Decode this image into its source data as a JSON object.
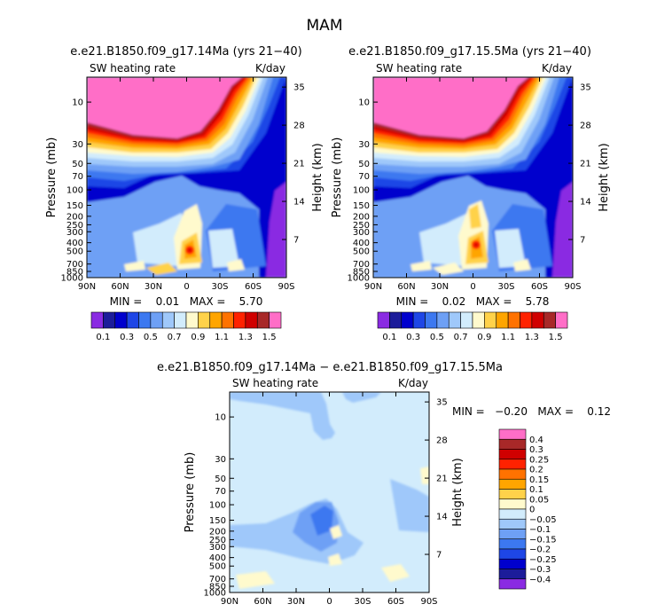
{
  "figure_title": "MAM",
  "chart_data": [
    {
      "type": "heatmap",
      "title": "e.e21.B1850.f09_g17.14Ma (yrs 21−40)",
      "subtitle_left": "SW heating rate",
      "subtitle_right": "K/day",
      "xlabel": "",
      "ylabel": "Pressure (mb)",
      "ylabel_right": "Height (km)",
      "x_ticks": [
        "90N",
        "60N",
        "30N",
        "0",
        "30S",
        "60S",
        "90S"
      ],
      "y_ticks": [
        "10",
        "30",
        "50",
        "70",
        "100",
        "150",
        "200",
        "250",
        "300",
        "400",
        "500",
        "700",
        "850",
        "1000"
      ],
      "y_ticks_right": [
        "35",
        "28",
        "21",
        "14",
        "7"
      ],
      "stats": "MIN =    0.01   MAX =    5.70",
      "colorbar_labels": [
        "0.1",
        "0.3",
        "0.5",
        "0.7",
        "0.9",
        "1.1",
        "1.3",
        "1.5"
      ]
    },
    {
      "type": "heatmap",
      "title": "e.e21.B1850.f09_g17.15.5Ma (yrs 21−40)",
      "subtitle_left": "SW heating rate",
      "subtitle_right": "K/day",
      "xlabel": "",
      "ylabel": "Pressure (mb)",
      "ylabel_right": "Height (km)",
      "x_ticks": [
        "90N",
        "60N",
        "30N",
        "0",
        "30S",
        "60S",
        "90S"
      ],
      "y_ticks": [
        "10",
        "30",
        "50",
        "70",
        "100",
        "150",
        "200",
        "250",
        "300",
        "400",
        "500",
        "700",
        "850",
        "1000"
      ],
      "y_ticks_right": [
        "35",
        "28",
        "21",
        "14",
        "7"
      ],
      "stats": "MIN =    0.02   MAX =    5.78",
      "colorbar_labels": [
        "0.1",
        "0.3",
        "0.5",
        "0.7",
        "0.9",
        "1.1",
        "1.3",
        "1.5"
      ]
    },
    {
      "type": "heatmap",
      "title": "e.e21.B1850.f09_g17.14Ma − e.e21.B1850.f09_g17.15.5Ma",
      "subtitle_left": "SW heating rate",
      "subtitle_right": "K/day",
      "xlabel": "",
      "ylabel": "Pressure (mb)",
      "ylabel_right": "Height (km)",
      "x_ticks": [
        "90N",
        "60N",
        "30N",
        "0",
        "30S",
        "60S",
        "90S"
      ],
      "y_ticks": [
        "10",
        "30",
        "50",
        "70",
        "100",
        "150",
        "200",
        "250",
        "300",
        "400",
        "500",
        "700",
        "850",
        "1000"
      ],
      "y_ticks_right": [
        "35",
        "28",
        "21",
        "14",
        "7"
      ],
      "stats": "MIN =   −0.20   MAX =    0.12",
      "colorbar_labels": [
        "0.4",
        "0.3",
        "0.25",
        "0.2",
        "0.15",
        "0.1",
        "0.05",
        "0",
        "−0.05",
        "−0.1",
        "−0.15",
        "−0.2",
        "−0.25",
        "−0.3",
        "−0.4"
      ]
    }
  ],
  "colors": {
    "abs_scale": [
      "#8a2be2",
      "#1c1c9a",
      "#0000cd",
      "#1e46e6",
      "#3c78f0",
      "#6ea0f5",
      "#9fc8fa",
      "#d2ecfc",
      "#fffacd",
      "#ffd24a",
      "#ffa500",
      "#ff7200",
      "#ff2200",
      "#d00000",
      "#a82828",
      "#ff6ec7"
    ],
    "diff_scale": [
      "#ff6ec7",
      "#a82828",
      "#d00000",
      "#ff2200",
      "#ff7200",
      "#ffa500",
      "#ffd24a",
      "#fffacd",
      "#d2ecfc",
      "#9fc8fa",
      "#6ea0f5",
      "#3c78f0",
      "#1e46e6",
      "#0000cd",
      "#1c1c9a",
      "#8a2be2"
    ]
  }
}
